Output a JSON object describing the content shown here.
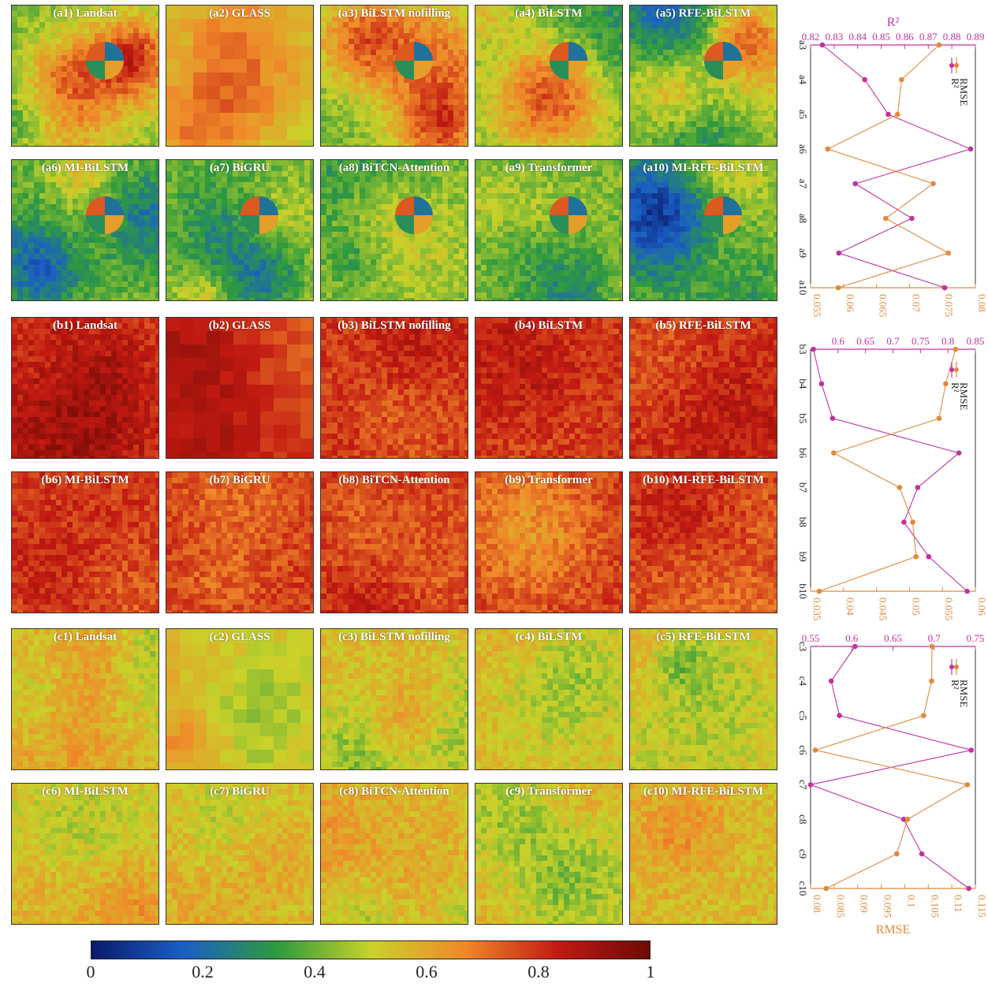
{
  "panels": [
    {
      "group": "a",
      "scheme": "a",
      "tiles": [
        {
          "label": "(a1) Landsat",
          "style": "fine"
        },
        {
          "label": "(a2) GLASS",
          "style": "coarse"
        },
        {
          "label": "(a3) BiLSTM nofilling",
          "style": "fine"
        },
        {
          "label": "(a4) BiLSTM",
          "style": "fine"
        },
        {
          "label": "(a5) RFE-BiLSTM",
          "style": "fine"
        },
        {
          "label": "(a6) MI-BiLSTM",
          "style": "fine"
        },
        {
          "label": "(a7) BiGRU",
          "style": "fine"
        },
        {
          "label": "(a8) BiTCN-Attention",
          "style": "fine"
        },
        {
          "label": "(a9) Transformer",
          "style": "fine"
        },
        {
          "label": "(a10) MI-RFE-BiLSTM",
          "style": "fine"
        }
      ]
    },
    {
      "group": "b",
      "scheme": "b",
      "tiles": [
        {
          "label": "(b1) Landsat",
          "style": "fine"
        },
        {
          "label": "(b2) GLASS",
          "style": "coarse"
        },
        {
          "label": "(b3) BiLSTM nofilling",
          "style": "fine"
        },
        {
          "label": "(b4) BiLSTM",
          "style": "fine"
        },
        {
          "label": "(b5) RFE-BiLSTM",
          "style": "fine"
        },
        {
          "label": "(b6) MI-BiLSTM",
          "style": "fine"
        },
        {
          "label": "(b7) BiGRU",
          "style": "fine"
        },
        {
          "label": "(b8) BiTCN-Attention",
          "style": "fine"
        },
        {
          "label": "(b9) Transformer",
          "style": "fine"
        },
        {
          "label": "(b10) MI-RFE-BiLSTM",
          "style": "fine"
        }
      ]
    },
    {
      "group": "c",
      "scheme": "c",
      "tiles": [
        {
          "label": "(c1) Landsat",
          "style": "fine"
        },
        {
          "label": "(c2) GLASS",
          "style": "coarse"
        },
        {
          "label": "(c3) BiLSTM nofilling",
          "style": "fine"
        },
        {
          "label": "(c4) BiLSTM",
          "style": "fine"
        },
        {
          "label": "(c5) RFE-BiLSTM",
          "style": "fine"
        },
        {
          "label": "(c6) MI-BiLSTM",
          "style": "fine"
        },
        {
          "label": "(c7) BiGRU",
          "style": "fine"
        },
        {
          "label": "(c8) BiTCN-Attention",
          "style": "fine"
        },
        {
          "label": "(c9) Transformer",
          "style": "fine"
        },
        {
          "label": "(c10) MI-RFE-BiLSTM",
          "style": "fine"
        }
      ]
    }
  ],
  "colorbar": {
    "ticks": [
      "0",
      "0.2",
      "0.4",
      "0.6",
      "0.8",
      "1"
    ],
    "stops": [
      "#0b1a6e",
      "#1a5fc4",
      "#2e9a3e",
      "#c9d22a",
      "#f08a2a",
      "#c21a12",
      "#6e0a05"
    ]
  },
  "colors": {
    "r2": "#c0339e",
    "rmse": "#e08a3c"
  },
  "chart_data": [
    {
      "type": "line",
      "categories": [
        "a3",
        "a4",
        "a5",
        "a6",
        "a7",
        "a8",
        "a9",
        "a10"
      ],
      "series": [
        {
          "name": "R²",
          "axis": "top",
          "values": [
            0.825,
            0.843,
            0.853,
            0.888,
            0.839,
            0.863,
            0.832,
            0.877
          ]
        },
        {
          "name": "RMSE",
          "axis": "bottom",
          "values": [
            0.0745,
            0.0688,
            0.0682,
            0.0576,
            0.0736,
            0.0664,
            0.0759,
            0.0592
          ]
        }
      ],
      "top_axis": {
        "label": "R²",
        "lim": [
          0.82,
          0.89
        ],
        "ticks": [
          "0.82",
          "0.83",
          "0.84",
          "0.85",
          "0.86",
          "0.87",
          "0.88",
          "0.89"
        ]
      },
      "bottom_axis": {
        "label": "",
        "lim": [
          0.055,
          0.08
        ],
        "ticks": [
          "0.055",
          "0.06",
          "0.065",
          "0.07",
          "0.075",
          "0.08"
        ]
      },
      "legend": [
        "R²",
        "RMSE"
      ]
    },
    {
      "type": "line",
      "categories": [
        "b3",
        "b4",
        "b5",
        "b6",
        "b7",
        "b8",
        "b9",
        "b10"
      ],
      "series": [
        {
          "name": "R²",
          "axis": "top",
          "values": [
            0.555,
            0.57,
            0.59,
            0.82,
            0.745,
            0.72,
            0.765,
            0.835
          ]
        },
        {
          "name": "RMSE",
          "axis": "bottom",
          "values": [
            0.057,
            0.0555,
            0.0545,
            0.0385,
            0.0485,
            0.0505,
            0.051,
            0.0363
          ]
        }
      ],
      "top_axis": {
        "label": "",
        "lim": [
          0.55,
          0.85
        ],
        "ticks": [
          "0.6",
          "0.65",
          "0.7",
          "0.75",
          "0.8",
          "0.85"
        ]
      },
      "bottom_axis": {
        "label": "",
        "lim": [
          0.035,
          0.06
        ],
        "ticks": [
          "0.035",
          "0.04",
          "0.045",
          "0.05",
          "0.055",
          "0.06"
        ]
      },
      "legend": [
        "R²",
        "RMSE"
      ]
    },
    {
      "type": "line",
      "categories": [
        "c3",
        "c4",
        "c5",
        "c6",
        "c7",
        "c8",
        "c9",
        "c10"
      ],
      "series": [
        {
          "name": "R²",
          "axis": "top",
          "values": [
            0.604,
            0.575,
            0.585,
            0.745,
            0.55,
            0.663,
            0.685,
            0.742
          ]
        },
        {
          "name": "RMSE",
          "axis": "bottom",
          "values": [
            0.1058,
            0.1057,
            0.104,
            0.081,
            0.1133,
            0.1006,
            0.0983,
            0.0833
          ]
        }
      ],
      "top_axis": {
        "label": "",
        "lim": [
          0.55,
          0.75
        ],
        "ticks": [
          "0.55",
          "0.6",
          "0.65",
          "0.7",
          "0.75"
        ]
      },
      "bottom_axis": {
        "label": "RMSE",
        "lim": [
          0.08,
          0.115
        ],
        "ticks": [
          "0.08",
          "0.085",
          "0.09",
          "0.095",
          "0.1",
          "0.105",
          "0.11",
          "0.115"
        ]
      },
      "legend": [
        "R²",
        "RMSE"
      ]
    }
  ]
}
